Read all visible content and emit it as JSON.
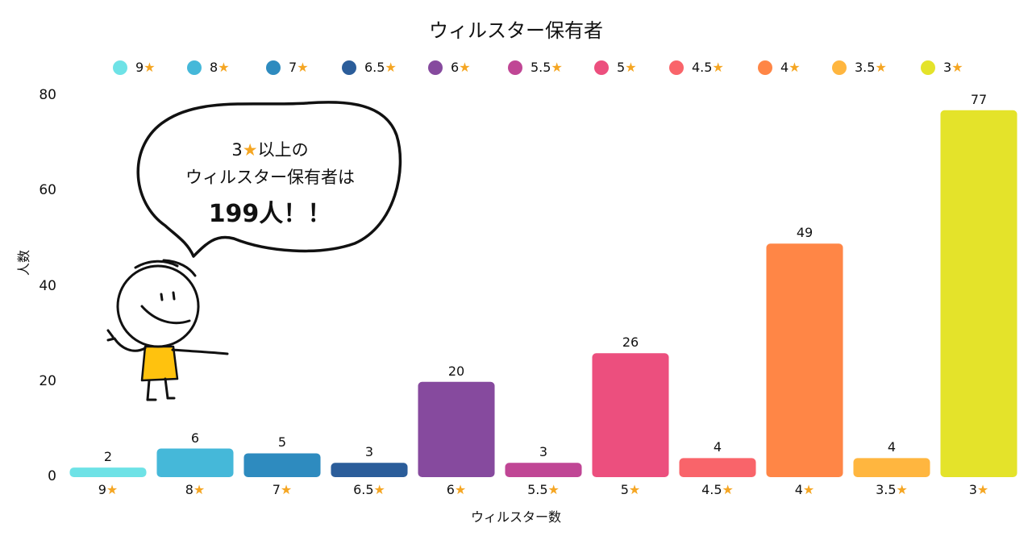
{
  "colors": {
    "star": "#f5a623",
    "series": [
      "#6ee2e6",
      "#45b8d9",
      "#2e8bbf",
      "#2b5d9a",
      "#864a9e",
      "#c04695",
      "#ec4f7e",
      "#f9646a",
      "#ff8646",
      "#ffb63f",
      "#e4e32a"
    ],
    "character_shirt": "#ffc20e"
  },
  "chart_data": {
    "type": "bar",
    "title": "ウィルスター保有者",
    "xlabel": "ウィルスター数",
    "ylabel": "人数",
    "categories": [
      "9",
      "8",
      "7",
      "6.5",
      "6",
      "5.5",
      "5",
      "4.5",
      "4",
      "3.5",
      "3"
    ],
    "category_suffix": "★",
    "values": [
      2,
      6,
      5,
      3,
      20,
      3,
      26,
      4,
      49,
      4,
      77
    ],
    "yticks": [
      0,
      20,
      40,
      60,
      80
    ],
    "ylim": [
      0,
      80
    ],
    "legend_position": "top-center",
    "grid": false
  },
  "annotation": {
    "line1_prefix": "3",
    "line1_star": "★",
    "line1_suffix": "以上の",
    "line2": "ウィルスター保有者は",
    "line3": "199人！！"
  }
}
